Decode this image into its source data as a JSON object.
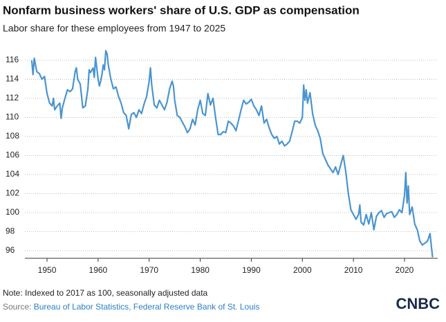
{
  "chart_data": {
    "type": "line",
    "title": "Nonfarm business workers' share of U.S. GDP as compensation",
    "subtitle": "Labor share for these employees from 1947 to 2025",
    "note": "Note: Indexed to 2017 as 100, seasonally adjusted data",
    "source_label": "Source:",
    "source": "Bureau of Labor Statistics, Federal Reserve Bank of St. Louis",
    "logo": "CNBC",
    "xlim": [
      1945.5,
      2026.5
    ],
    "xticks": [
      1950,
      1960,
      1970,
      1980,
      1990,
      2000,
      2010,
      2020
    ],
    "ylim": [
      95.2,
      117.5
    ],
    "yticks": [
      96,
      98,
      100,
      102,
      104,
      106,
      108,
      110,
      112,
      114,
      116
    ],
    "grid": true,
    "series": [
      {
        "color": "#4a94cf",
        "x": [
          1947,
          1947.25,
          1947.5,
          1948,
          1948.5,
          1949,
          1949.5,
          1950,
          1950.5,
          1951,
          1951.25,
          1951.5,
          1952,
          1952.5,
          1952.75,
          1953,
          1953.5,
          1954,
          1954.5,
          1955,
          1955.5,
          1955.75,
          1956,
          1956.5,
          1957,
          1957.5,
          1958,
          1958.25,
          1958.5,
          1959,
          1959.25,
          1959.5,
          1960,
          1960.25,
          1960.5,
          1960.75,
          1961,
          1961.25,
          1961.5,
          1961.75,
          1962,
          1962.5,
          1963,
          1963.5,
          1964,
          1964.5,
          1965,
          1965.5,
          1966,
          1966.5,
          1967,
          1967.5,
          1968,
          1968.5,
          1969,
          1969.5,
          1970,
          1970.25,
          1970.5,
          1971,
          1971.5,
          1972,
          1972.5,
          1973,
          1973.5,
          1974,
          1974.5,
          1974.75,
          1975,
          1975.5,
          1976,
          1976.5,
          1977,
          1977.5,
          1978,
          1978.5,
          1979,
          1979.5,
          1980,
          1980.5,
          1981,
          1981.5,
          1982,
          1982.5,
          1983,
          1983.5,
          1984,
          1984.5,
          1985,
          1985.5,
          1986,
          1986.5,
          1987,
          1987.5,
          1988,
          1988.5,
          1989,
          1989.5,
          1990,
          1990.5,
          1991,
          1991.5,
          1992,
          1992.5,
          1993,
          1993.5,
          1994,
          1994.5,
          1995,
          1995.5,
          1996,
          1996.5,
          1997,
          1997.5,
          1998,
          1998.5,
          1999,
          1999.5,
          2000,
          2000.25,
          2000.5,
          2000.75,
          2001,
          2001.5,
          2002,
          2002.5,
          2003,
          2003.5,
          2004,
          2004.5,
          2005,
          2005.5,
          2006,
          2006.5,
          2007,
          2007.5,
          2008,
          2008.5,
          2009,
          2009.5,
          2010,
          2010.5,
          2011,
          2011.25,
          2011.5,
          2012,
          2012.5,
          2013,
          2013.5,
          2014,
          2014.5,
          2015,
          2015.5,
          2016,
          2016.5,
          2017,
          2017.5,
          2018,
          2018.5,
          2019,
          2019.5,
          2020,
          2020.25,
          2020.5,
          2020.75,
          2021,
          2021.5,
          2022,
          2022.5,
          2023,
          2023.5,
          2024,
          2024.5,
          2025,
          2025.25,
          2025.5
        ],
        "values": [
          116.0,
          114.5,
          116.2,
          114.8,
          114.6,
          114.0,
          114.3,
          112.5,
          111.5,
          111.2,
          112.0,
          110.8,
          111.2,
          111.5,
          109.9,
          111.0,
          112.0,
          112.9,
          112.7,
          113.0,
          114.8,
          115.2,
          114.0,
          113.5,
          111.0,
          111.2,
          113.0,
          115.0,
          114.7,
          115.2,
          114.2,
          116.3,
          114.0,
          113.3,
          113.8,
          114.5,
          115.5,
          115.0,
          117.0,
          116.7,
          115.5,
          114.0,
          113.0,
          113.2,
          112.2,
          111.5,
          110.5,
          110.2,
          108.8,
          110.3,
          110.5,
          110.0,
          110.8,
          110.4,
          111.4,
          112.2,
          113.8,
          115.2,
          113.4,
          111.3,
          111.0,
          111.8,
          111.3,
          110.8,
          111.6,
          113.0,
          113.8,
          113.3,
          111.8,
          110.2,
          110.0,
          109.5,
          109.0,
          108.4,
          108.8,
          109.8,
          109.2,
          110.8,
          111.8,
          110.4,
          110.2,
          112.5,
          111.3,
          112.0,
          110.0,
          108.2,
          108.2,
          108.5,
          108.4,
          109.6,
          109.4,
          109.1,
          108.6,
          109.7,
          110.8,
          111.8,
          111.4,
          111.6,
          111.9,
          111.2,
          110.8,
          110.2,
          111.2,
          109.4,
          109.8,
          108.9,
          108.2,
          107.8,
          108.0,
          107.2,
          107.5,
          107.0,
          107.2,
          107.5,
          108.5,
          109.6,
          109.6,
          109.4,
          110.0,
          113.4,
          111.8,
          112.9,
          111.5,
          112.6,
          110.4,
          109.2,
          108.6,
          107.8,
          106.2,
          105.6,
          105.0,
          104.6,
          104.2,
          104.8,
          104.0,
          105.0,
          106.0,
          104.3,
          102.0,
          100.3,
          99.8,
          99.3,
          99.8,
          100.8,
          99.0,
          98.7,
          99.8,
          98.8,
          100.0,
          98.2,
          99.6,
          100.0,
          100.2,
          99.5,
          99.9,
          100.0,
          100.1,
          99.5,
          99.8,
          100.3,
          100.0,
          101.8,
          104.2,
          101.0,
          102.8,
          99.8,
          100.6,
          98.8,
          98.2,
          97.0,
          96.6,
          96.8,
          97.0,
          97.8,
          96.5,
          95.3
        ]
      }
    ]
  }
}
